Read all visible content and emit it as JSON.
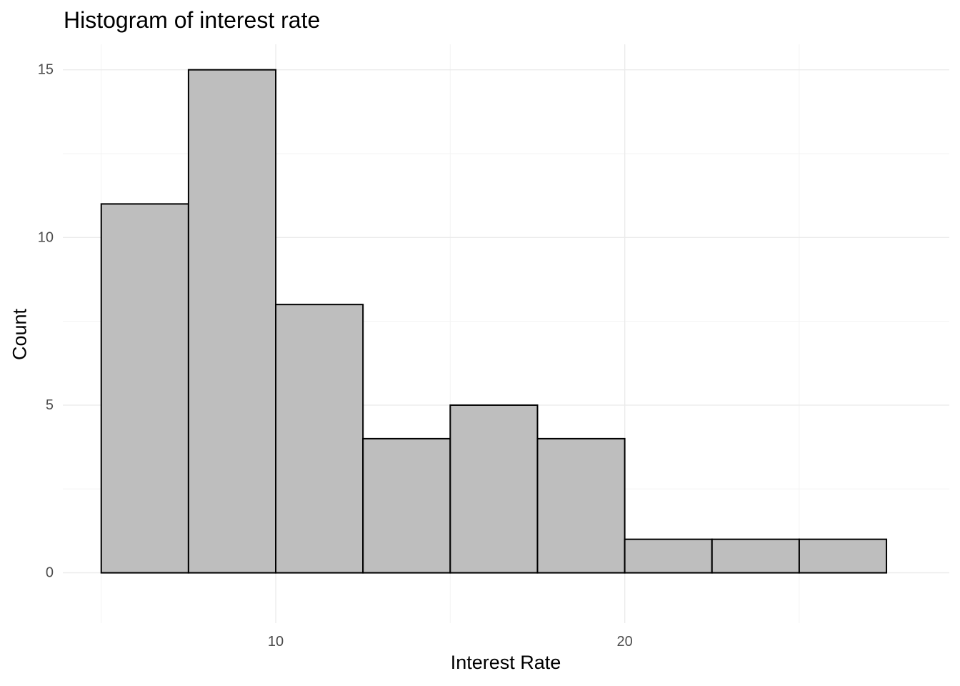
{
  "chart_data": {
    "type": "bar",
    "title": "Histogram of interest rate",
    "xlabel": "Interest Rate",
    "ylabel": "Count",
    "bins": [
      {
        "start": 5.0,
        "end": 7.5,
        "count": 11
      },
      {
        "start": 7.5,
        "end": 10.0,
        "count": 15
      },
      {
        "start": 10.0,
        "end": 12.5,
        "count": 8
      },
      {
        "start": 12.5,
        "end": 15.0,
        "count": 4
      },
      {
        "start": 15.0,
        "end": 17.5,
        "count": 5
      },
      {
        "start": 17.5,
        "end": 20.0,
        "count": 4
      },
      {
        "start": 20.0,
        "end": 22.5,
        "count": 1
      },
      {
        "start": 22.5,
        "end": 25.0,
        "count": 1
      },
      {
        "start": 25.0,
        "end": 27.5,
        "count": 1
      }
    ],
    "xlim": [
      3.9,
      29.3
    ],
    "ylim": [
      -1.5,
      15.76
    ],
    "x_ticks": [
      10,
      20
    ],
    "x_tick_labels": [
      "10",
      "20"
    ],
    "x_minor_ticks": [
      5,
      15,
      25
    ],
    "y_ticks": [
      0,
      5,
      10,
      15
    ],
    "y_tick_labels": [
      "0",
      "5",
      "10",
      "15"
    ],
    "y_minor_ticks": [
      2.5,
      7.5,
      12.5
    ],
    "grid": true,
    "legend": "none",
    "colors": {
      "bar_fill": "#bebebe",
      "bar_stroke": "#000000",
      "grid_major": "#ebebeb",
      "grid_minor": "#f3f3f3",
      "tick_text": "#4d4d4d"
    }
  }
}
